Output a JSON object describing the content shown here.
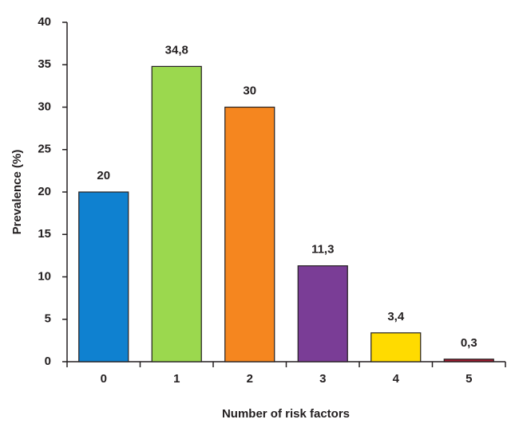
{
  "chart_data": {
    "type": "bar",
    "x_label": "Number of risk factors",
    "y_label": "Prevalence (%)",
    "categories": [
      "0",
      "1",
      "2",
      "3",
      "4",
      "5"
    ],
    "values": [
      20,
      34.8,
      30,
      11.3,
      3.4,
      0.3
    ],
    "value_labels": [
      "20",
      "34,8",
      "30",
      "11,3",
      "3,4",
      "0,3"
    ],
    "colors": [
      "#0f81d0",
      "#9bd84e",
      "#f5861f",
      "#7a3d96",
      "#ffdb00",
      "#a01c30"
    ],
    "ylim": [
      0,
      40
    ],
    "yticks": [
      0,
      5,
      10,
      15,
      20,
      25,
      30,
      35,
      40
    ],
    "grid": false
  }
}
